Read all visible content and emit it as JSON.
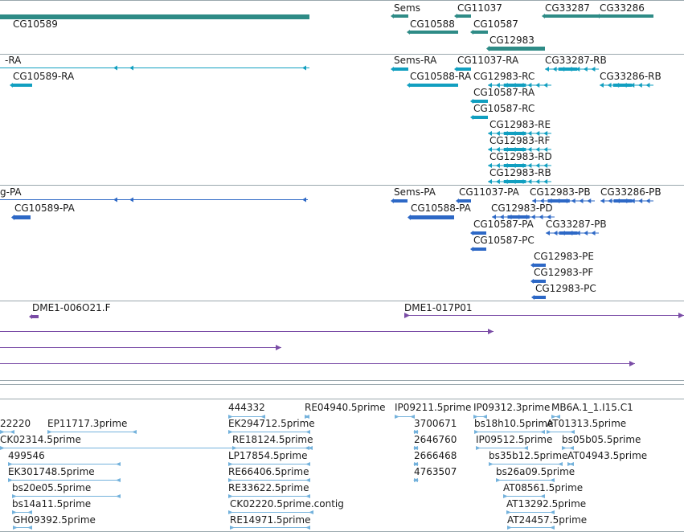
{
  "colors": {
    "gene": "#2e8b86",
    "transcript": "#119fc0",
    "protein": "#2d68c6",
    "clone": "#7a4ca6",
    "est": "#74b2dc",
    "divider": "#9aa7ad"
  },
  "tracks": {
    "genes": {
      "features": [
        {
          "label": "CG10589",
          "shape": "block"
        },
        {
          "label": "Sems",
          "shape": "block"
        },
        {
          "label": "CG11037",
          "shape": "block"
        },
        {
          "label": "CG10588",
          "shape": "block"
        },
        {
          "label": "CG10587",
          "shape": "block"
        },
        {
          "label": "CG12983",
          "shape": "block"
        },
        {
          "label": "CG33287",
          "shape": "block"
        },
        {
          "label": "CG33286",
          "shape": "block"
        }
      ]
    },
    "transcripts": {
      "features": [
        {
          "label": "-RA",
          "shape": "line"
        },
        {
          "label": "CG10589-RA",
          "shape": "block"
        },
        {
          "label": "Sems-RA",
          "shape": "block"
        },
        {
          "label": "CG11037-RA",
          "shape": "block"
        },
        {
          "label": "CG10588-RA",
          "shape": "block"
        },
        {
          "label": "CG33287-RB",
          "shape": "exons"
        },
        {
          "label": "CG12983-RC",
          "shape": "exons"
        },
        {
          "label": "CG33286-RB",
          "shape": "exons"
        },
        {
          "label": "CG10587-RA",
          "shape": "block"
        },
        {
          "label": "CG10587-RC",
          "shape": "block"
        },
        {
          "label": "CG12983-RE",
          "shape": "exons"
        },
        {
          "label": "CG12983-RF",
          "shape": "exons"
        },
        {
          "label": "CG12983-RD",
          "shape": "exons"
        },
        {
          "label": "CG12983-RB",
          "shape": "exons"
        }
      ]
    },
    "proteins": {
      "features": [
        {
          "label": "g-PA",
          "shape": "line"
        },
        {
          "label": "CG10589-PA",
          "shape": "block"
        },
        {
          "label": "Sems-PA",
          "shape": "block"
        },
        {
          "label": "CG11037-PA",
          "shape": "block"
        },
        {
          "label": "CG12983-PB",
          "shape": "exons"
        },
        {
          "label": "CG33286-PB",
          "shape": "exons"
        },
        {
          "label": "CG10588-PA",
          "shape": "block"
        },
        {
          "label": "CG12983-PD",
          "shape": "exons"
        },
        {
          "label": "CG10587-PA",
          "shape": "block"
        },
        {
          "label": "CG33287-PB",
          "shape": "exons"
        },
        {
          "label": "CG10587-PC",
          "shape": "block"
        },
        {
          "label": "CG12983-PE",
          "shape": "block"
        },
        {
          "label": "CG12983-PF",
          "shape": "block"
        },
        {
          "label": "CG12983-PC",
          "shape": "block"
        }
      ]
    },
    "clones": {
      "features": [
        {
          "label": "DME1-006O21.F",
          "shape": "block"
        },
        {
          "label": "DME1-017P01",
          "shape": "line"
        },
        {
          "label": "",
          "shape": "line"
        },
        {
          "label": "",
          "shape": "line"
        },
        {
          "label": "",
          "shape": "line"
        }
      ]
    },
    "ests": {
      "features": [
        {
          "label": "444332"
        },
        {
          "label": "RE04940.5prime"
        },
        {
          "label": "IP09211.5prime"
        },
        {
          "label": "IP09312.3prime"
        },
        {
          "label": "MB6A.1_1.I15.C1"
        },
        {
          "label": "22220"
        },
        {
          "label": "EP11717.3prime"
        },
        {
          "label": "EK294712.5prime"
        },
        {
          "label": "3700671"
        },
        {
          "label": "bs18h10.5prime"
        },
        {
          "label": "AT01313.5prime"
        },
        {
          "label": "CK02314.5prime"
        },
        {
          "label": "RE18124.5prime"
        },
        {
          "label": "2646760"
        },
        {
          "label": "IP09512.5prime"
        },
        {
          "label": "bs05b05.5prime"
        },
        {
          "label": "499546"
        },
        {
          "label": "LP17854.5prime"
        },
        {
          "label": "2666468"
        },
        {
          "label": "bs35b12.5prime"
        },
        {
          "label": "AT04943.5prime"
        },
        {
          "label": "EK301748.5prime"
        },
        {
          "label": "RE66406.5prime"
        },
        {
          "label": "4763507"
        },
        {
          "label": "bs26a09.5prime"
        },
        {
          "label": "bs20e05.5prime"
        },
        {
          "label": "RE33622.5prime"
        },
        {
          "label": "AT08561.5prime"
        },
        {
          "label": "bs14a11.5prime"
        },
        {
          "label": "CK02220.5prime.contig"
        },
        {
          "label": "AT13292.5prime"
        },
        {
          "label": "GH09392.5prime"
        },
        {
          "label": "RE14971.5prime"
        },
        {
          "label": "AT24457.5prime"
        }
      ]
    }
  }
}
